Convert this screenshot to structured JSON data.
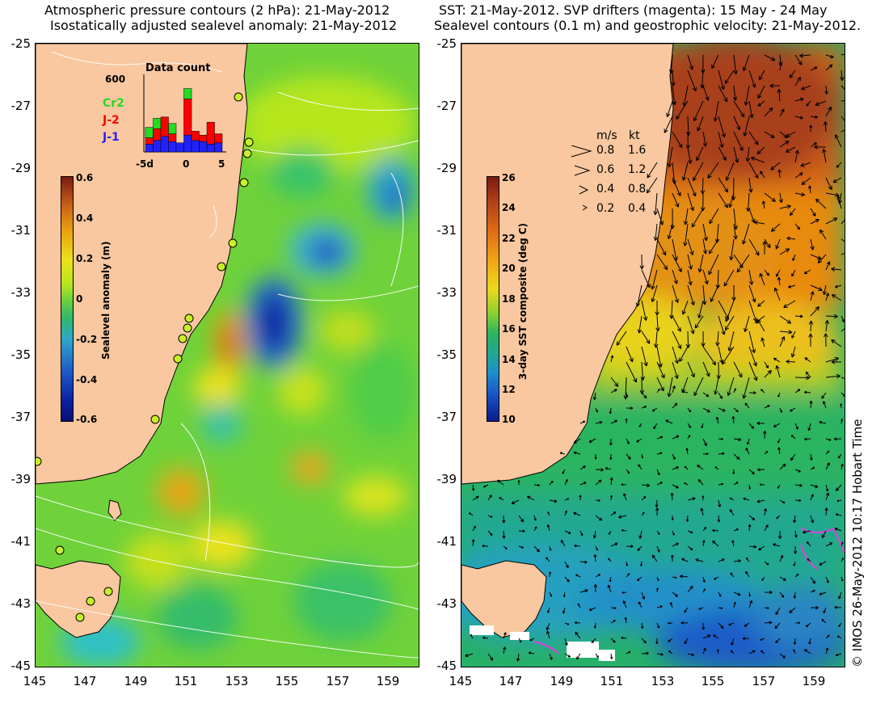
{
  "left_panel": {
    "title_line1": "Atmospheric pressure contours (2 hPa): 21-May-2012",
    "title_line2": "Isostatically adjusted sealevel anomaly: 21-May-2012",
    "y_ticks": [
      "-25",
      "-27",
      "-29",
      "-31",
      "-33",
      "-35",
      "-37",
      "-39",
      "-41",
      "-43",
      "-45"
    ],
    "x_ticks": [
      "145",
      "147",
      "149",
      "151",
      "153",
      "155",
      "157",
      "159"
    ],
    "colorbar": {
      "label": "Sealevel anomaly (m)",
      "ticks": [
        "0.6",
        "0.4",
        "0.2",
        "0",
        "-0.2",
        "-0.4",
        "-0.6"
      ],
      "range": [
        -0.6,
        0.6
      ]
    },
    "data_count": {
      "title": "Data count",
      "ymax_label": "600",
      "x_labels": [
        "-5d",
        "0",
        "5"
      ],
      "legend": [
        {
          "label": "Cr2",
          "color": "#22dd22"
        },
        {
          "label": "J-2",
          "color": "#ff0000"
        },
        {
          "label": "J-1",
          "color": "#2222ff"
        }
      ],
      "bars": [
        {
          "j1": 60,
          "j2": 50,
          "cr2": 80
        },
        {
          "j1": 90,
          "j2": 90,
          "cr2": 80
        },
        {
          "j1": 120,
          "j2": 150,
          "cr2": 0
        },
        {
          "j1": 80,
          "j2": 60,
          "cr2": 80
        },
        {
          "j1": 70,
          "j2": 0,
          "cr2": 0
        },
        {
          "j1": 130,
          "j2": 280,
          "cr2": 80
        },
        {
          "j1": 90,
          "j2": 70,
          "cr2": 0
        },
        {
          "j1": 80,
          "j2": 50,
          "cr2": 0
        },
        {
          "j1": 60,
          "j2": 170,
          "cr2": 0
        },
        {
          "j1": 70,
          "j2": 70,
          "cr2": 0
        }
      ]
    }
  },
  "right_panel": {
    "title_line1": "SST: 21-May-2012. SVP drifters (magenta): 15 May - 24 May",
    "title_line2": "Sealevel contours (0.1 m) and geostrophic velocity: 21-May-2012.",
    "y_ticks": [
      "-25",
      "-27",
      "-29",
      "-31",
      "-33",
      "-35",
      "-37",
      "-39",
      "-41",
      "-43",
      "-45"
    ],
    "x_ticks": [
      "145",
      "147",
      "149",
      "151",
      "153",
      "155",
      "157",
      "159"
    ],
    "colorbar": {
      "label": "3-day SST composite (deg C)",
      "ticks": [
        "26",
        "24",
        "22",
        "20",
        "18",
        "16",
        "14",
        "12",
        "10"
      ],
      "range": [
        10,
        26
      ]
    },
    "velocity_legend": {
      "header_ms": "m/s",
      "header_kt": "kt",
      "rows": [
        {
          "ms": "0.8",
          "kt": "1.6"
        },
        {
          "ms": "0.6",
          "kt": "1.2"
        },
        {
          "ms": "0.4",
          "kt": "0.8"
        },
        {
          "ms": "0.2",
          "kt": "0.4"
        }
      ]
    }
  },
  "credit": "© IMOS 26-May-2012 10:17 Hobart Time",
  "colors": {
    "land": "#f9c8a0",
    "text": "#000000"
  }
}
